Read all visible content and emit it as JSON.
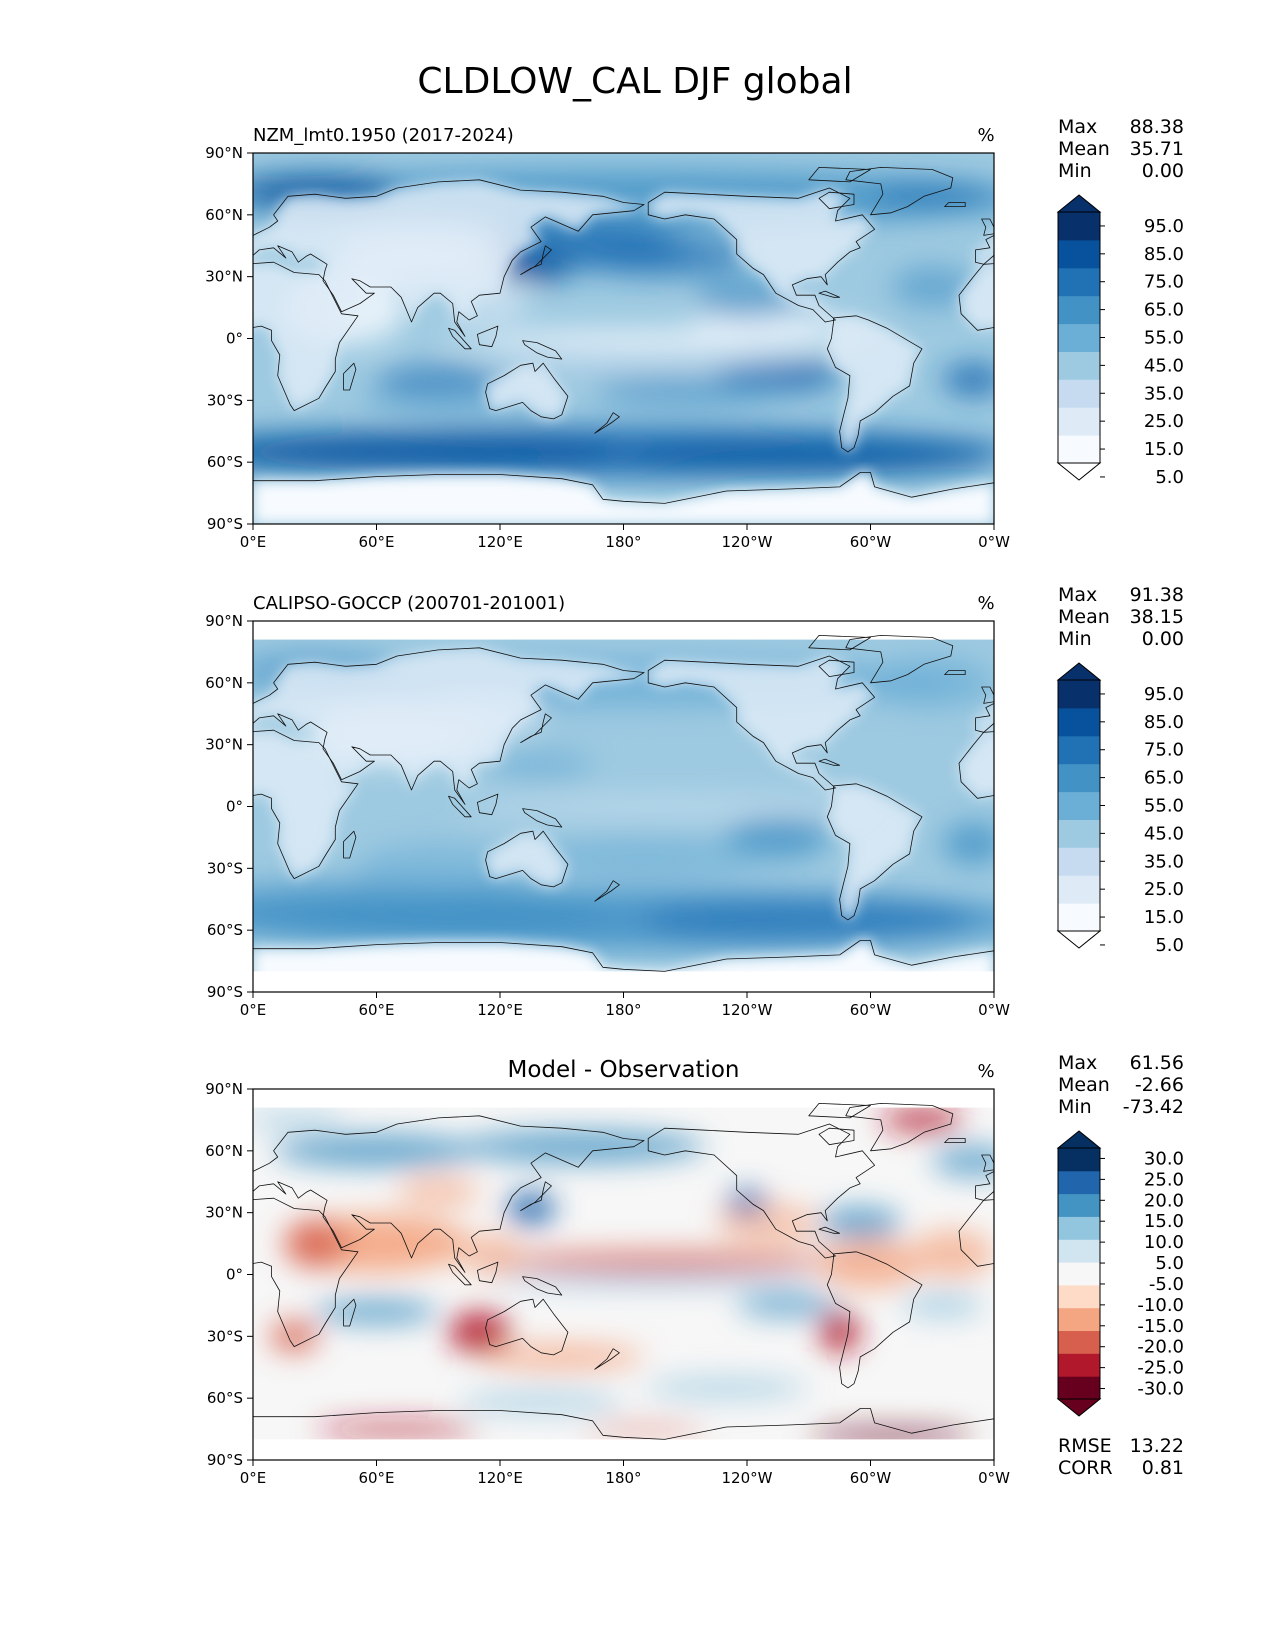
{
  "title": "CLDLOW_CAL DJF global",
  "x_ticks": [
    "0°E",
    "60°E",
    "120°E",
    "180°",
    "120°W",
    "60°W",
    "0°W"
  ],
  "y_ticks": [
    "90°N",
    "60°N",
    "30°N",
    "0°",
    "30°S",
    "60°S",
    "90°S"
  ],
  "colorbars": {
    "sequential": {
      "labels": [
        "95.0",
        "85.0",
        "75.0",
        "65.0",
        "55.0",
        "45.0",
        "35.0",
        "25.0",
        "15.0",
        "5.0"
      ],
      "colors": [
        "#f7fbff",
        "#deebf7",
        "#c6dbef",
        "#9ecae1",
        "#6baed6",
        "#4292c6",
        "#2171b5",
        "#08519c",
        "#08306b"
      ]
    },
    "diverging": {
      "labels": [
        "30.0",
        "25.0",
        "20.0",
        "15.0",
        "10.0",
        "5.0",
        "-5.0",
        "-10.0",
        "-15.0",
        "-20.0",
        "-25.0",
        "-30.0"
      ],
      "colors": [
        "#67001f",
        "#b2182b",
        "#d6604d",
        "#f4a582",
        "#fddbc7",
        "#f7f7f7",
        "#d1e5f0",
        "#92c5de",
        "#4393c3",
        "#2166ac",
        "#053061"
      ]
    }
  },
  "panels": [
    {
      "id": "model",
      "left_title": "NZM_lmt0.1950 (2017-2024)",
      "center_title": "",
      "units": "%",
      "stats": [
        {
          "label": "Max",
          "value": "88.38"
        },
        {
          "label": "Mean",
          "value": "35.71"
        },
        {
          "label": "Min",
          "value": "0.00"
        }
      ],
      "colorbar": "sequential"
    },
    {
      "id": "obs",
      "left_title": "CALIPSO-GOCCP (200701-201001)",
      "center_title": "",
      "units": "%",
      "stats": [
        {
          "label": "Max",
          "value": "91.38"
        },
        {
          "label": "Mean",
          "value": "38.15"
        },
        {
          "label": "Min",
          "value": "0.00"
        }
      ],
      "colorbar": "sequential"
    },
    {
      "id": "diff",
      "left_title": "",
      "center_title": "Model - Observation",
      "units": "%",
      "stats": [
        {
          "label": "Max",
          "value": "61.56"
        },
        {
          "label": "Mean",
          "value": "-2.66"
        },
        {
          "label": "Min",
          "value": "-73.42"
        }
      ],
      "colorbar": "diverging",
      "extra_stats": [
        {
          "label": "RMSE",
          "value": "13.22"
        },
        {
          "label": "CORR",
          "value": "0.81"
        }
      ]
    }
  ]
}
